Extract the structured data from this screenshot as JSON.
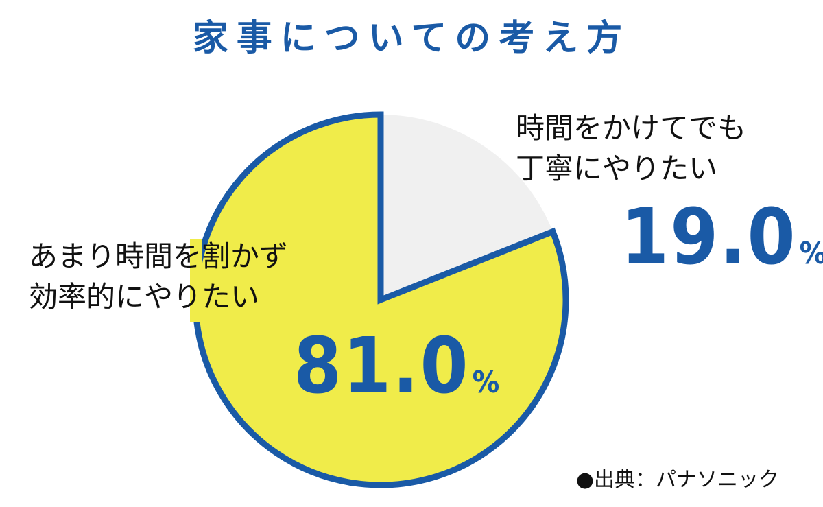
{
  "chart_data": {
    "type": "pie",
    "title": "家事についての考え方",
    "slices": [
      {
        "label_lines": [
          "あまり時間を割かず",
          "効率的にやりたい"
        ],
        "value": 81.0,
        "value_text": "81.0",
        "unit": "%",
        "color": "#f0ec4a"
      },
      {
        "label_lines": [
          "時間をかけてでも",
          "丁寧にやりたい"
        ],
        "value": 19.0,
        "value_text": "19.0",
        "unit": "%",
        "color": "#f0f0f0"
      }
    ],
    "outline_color": "#1a5aa6"
  },
  "source": "●出典：パナソニック"
}
